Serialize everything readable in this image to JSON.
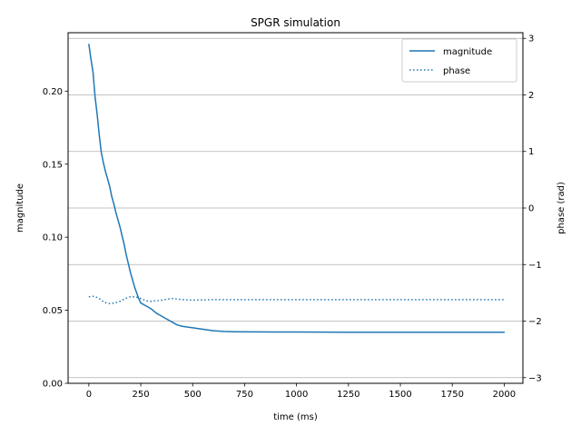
{
  "chart_data": {
    "type": "line",
    "title": "SPGR simulation",
    "xlabel": "time (ms)",
    "ylabel": "magnitude",
    "y2label": "phase (rad)",
    "xlim": [
      -100,
      2090
    ],
    "ylim": [
      0,
      0.24
    ],
    "y2lim": [
      -3.1,
      3.1
    ],
    "x_ticks": [
      0,
      250,
      500,
      750,
      1000,
      1250,
      1500,
      1750,
      2000
    ],
    "x_tick_labels": [
      "0",
      "250",
      "500",
      "750",
      "1000",
      "1250",
      "1500",
      "1750",
      "2000"
    ],
    "y_ticks": [
      0.0,
      0.05,
      0.1,
      0.15,
      0.2
    ],
    "y_tick_labels": [
      "0.00",
      "0.05",
      "0.10",
      "0.15",
      "0.20"
    ],
    "y2_ticks": [
      -3,
      -2,
      -1,
      0,
      1,
      2,
      3
    ],
    "y2_tick_labels": [
      "−3",
      "−2",
      "−1",
      "0",
      "1",
      "2",
      "3"
    ],
    "grid": "horizontal lines at right-axis ticks",
    "legend_position": "top-right",
    "color": "#1f77b4",
    "series": [
      {
        "name": "magnitude",
        "axis": "left",
        "style": "solid",
        "x": [
          0,
          10,
          20,
          30,
          40,
          50,
          60,
          70,
          80,
          90,
          100,
          110,
          120,
          130,
          140,
          150,
          160,
          170,
          180,
          190,
          200,
          210,
          220,
          230,
          240,
          250,
          275,
          300,
          325,
          350,
          375,
          400,
          425,
          450,
          500,
          550,
          600,
          650,
          700,
          800,
          900,
          1000,
          1250,
          1500,
          1750,
          2000
        ],
        "y": [
          0.232,
          0.222,
          0.213,
          0.196,
          0.184,
          0.17,
          0.158,
          0.151,
          0.145,
          0.14,
          0.135,
          0.128,
          0.123,
          0.117,
          0.112,
          0.107,
          0.101,
          0.095,
          0.088,
          0.082,
          0.076,
          0.071,
          0.066,
          0.062,
          0.058,
          0.055,
          0.053,
          0.051,
          0.048,
          0.046,
          0.044,
          0.042,
          0.04,
          0.039,
          0.038,
          0.037,
          0.036,
          0.0355,
          0.0353,
          0.0352,
          0.0351,
          0.0351,
          0.035,
          0.035,
          0.035,
          0.035
        ]
      },
      {
        "name": "phase",
        "axis": "right",
        "style": "dotted",
        "x": [
          0,
          25,
          50,
          75,
          100,
          125,
          150,
          175,
          200,
          225,
          250,
          275,
          300,
          350,
          400,
          450,
          500,
          600,
          700,
          800,
          1000,
          1250,
          1500,
          1750,
          2000
        ],
        "y": [
          -1.57,
          -1.56,
          -1.6,
          -1.67,
          -1.69,
          -1.68,
          -1.65,
          -1.6,
          -1.57,
          -1.57,
          -1.6,
          -1.64,
          -1.65,
          -1.63,
          -1.6,
          -1.62,
          -1.63,
          -1.62,
          -1.62,
          -1.62,
          -1.62,
          -1.62,
          -1.62,
          -1.62,
          -1.62
        ]
      }
    ]
  }
}
